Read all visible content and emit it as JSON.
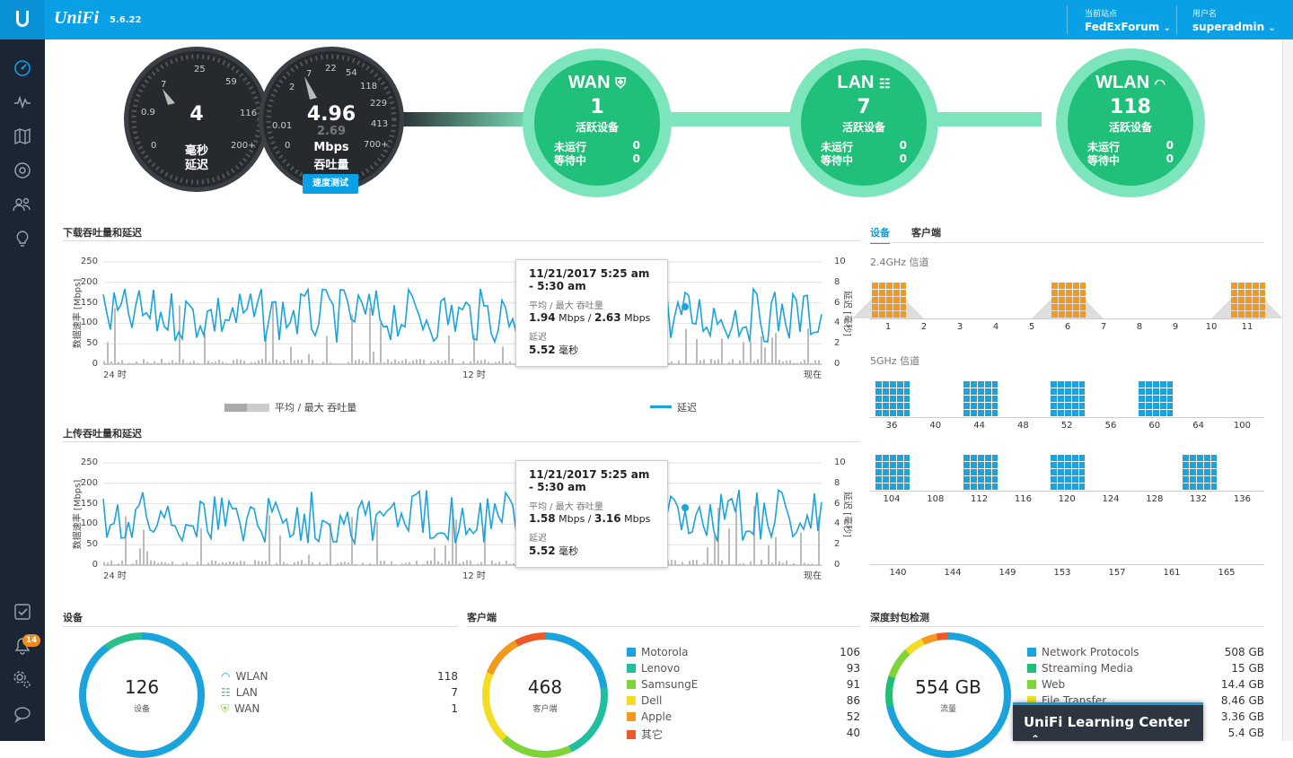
{
  "header": {
    "brand": "UniFi",
    "version": "5.6.22",
    "site_caption": "当前站点",
    "site_value": "FedExForum",
    "user_caption": "用户名",
    "user_value": "superadmin"
  },
  "sidebar": {
    "badge": "14",
    "icons": [
      "dashboard-icon",
      "statistics-icon",
      "map-icon",
      "devices-icon",
      "clients-icon",
      "insights-icon",
      "alerts-icon",
      "events-icon",
      "settings-icon",
      "chat-icon"
    ]
  },
  "gauges": {
    "latency": {
      "value": "4",
      "unit": "毫秒",
      "label": "延迟",
      "ticks": [
        "0",
        "0.9",
        "7",
        "25",
        "59",
        "116",
        "200+"
      ]
    },
    "throughput": {
      "value": "4.96",
      "sub": "2.69",
      "unit": "Mbps",
      "label": "吞吐量",
      "ticks": [
        "0",
        "0.01",
        "2",
        "7",
        "22",
        "54",
        "118",
        "229",
        "413",
        "700+"
      ],
      "button": "速度测试"
    }
  },
  "status": [
    {
      "title": "WAN",
      "count": "1",
      "label": "活跃设备",
      "r1k": "未运行",
      "r1v": "0",
      "r2k": "等待中",
      "r2v": "0"
    },
    {
      "title": "LAN",
      "count": "7",
      "label": "活跃设备",
      "r1k": "未运行",
      "r1v": "0",
      "r2k": "等待中",
      "r2v": "0"
    },
    {
      "title": "WLAN",
      "count": "118",
      "label": "活跃设备",
      "r1k": "未运行",
      "r1v": "0",
      "r2k": "等待中",
      "r2v": "0"
    }
  ],
  "download": {
    "title": "下载吞吐量和延迟",
    "ylabel": "数据速率 [Mbps]",
    "y2label": "延迟 [毫秒]",
    "yticks": [
      "250",
      "200",
      "150",
      "100",
      "50",
      "0"
    ],
    "y2ticks": [
      "10",
      "8",
      "6",
      "4",
      "2",
      "0"
    ],
    "xticks": [
      "24 时",
      "12 时",
      "现在"
    ],
    "tooltip": {
      "time": "11/21/2017 5:25 am - 5:30 am",
      "k1": "平均 / 最大 吞吐量",
      "avg": "1.94",
      "max": "2.63",
      "unit": "Mbps",
      "sep": "/",
      "k2": "延迟",
      "lat": "5.52",
      "lat_unit": "毫秒"
    },
    "legend1": "平均 / 最大 吞吐量",
    "legend2": "延迟"
  },
  "upload": {
    "title": "上传吞吐量和延迟",
    "ylabel": "数据速率 [Mbps]",
    "y2label": "延迟 [毫秒]",
    "yticks": [
      "250",
      "200",
      "150",
      "100",
      "50",
      "0"
    ],
    "y2ticks": [
      "10",
      "8",
      "6",
      "4",
      "2",
      "0"
    ],
    "xticks": [
      "24 时",
      "12 时",
      "现在"
    ],
    "tooltip": {
      "time": "11/21/2017 5:25 am - 5:30 am",
      "k1": "平均 / 最大 吞吐量",
      "avg": "1.58",
      "max": "3.16",
      "unit": "Mbps",
      "sep": "/",
      "k2": "延迟",
      "lat": "5.52",
      "lat_unit": "毫秒"
    }
  },
  "channels": {
    "tab1": "设备",
    "tab2": "客户端",
    "g24": "2.4GHz 信道",
    "g5": "5GHz 信道",
    "row24": [
      "1",
      "2",
      "3",
      "4",
      "5",
      "6",
      "7",
      "8",
      "9",
      "10",
      "11"
    ],
    "row5a": [
      "36",
      "40",
      "44",
      "48",
      "52",
      "56",
      "60",
      "64",
      "100"
    ],
    "row5b": [
      "104",
      "108",
      "112",
      "116",
      "120",
      "124",
      "128",
      "132",
      "136"
    ],
    "row5c": [
      "140",
      "144",
      "149",
      "153",
      "157",
      "161",
      "165"
    ]
  },
  "devices": {
    "title": "设备",
    "total": "126",
    "caption": "设备",
    "rows": [
      {
        "name": "WLAN",
        "value": "118",
        "icon": "wifi-icon"
      },
      {
        "name": "LAN",
        "value": "7",
        "icon": "lan-icon"
      },
      {
        "name": "WAN",
        "value": "1",
        "icon": "shield-icon"
      }
    ]
  },
  "clients": {
    "title": "客户端",
    "total": "468",
    "caption": "客户端",
    "rows": [
      {
        "name": "Motorola",
        "value": "106",
        "color": "#1aa3dc"
      },
      {
        "name": "Lenovo",
        "value": "93",
        "color": "#1fbfa0"
      },
      {
        "name": "SamsungE",
        "value": "91",
        "color": "#7fd43a"
      },
      {
        "name": "Dell",
        "value": "86",
        "color": "#f2dc26"
      },
      {
        "name": "Apple",
        "value": "52",
        "color": "#f39a1e"
      },
      {
        "name": "其它",
        "value": "40",
        "color": "#ec5a2a"
      }
    ]
  },
  "dpi": {
    "title": "深度封包检测",
    "total": "554 GB",
    "caption": "流量",
    "rows": [
      {
        "name": "Network Protocols",
        "value": "508 GB",
        "color": "#1aa3dc"
      },
      {
        "name": "Streaming Media",
        "value": "15 GB",
        "color": "#1fbf78"
      },
      {
        "name": "Web",
        "value": "14.4 GB",
        "color": "#7fd43a"
      },
      {
        "name": "File Transfer",
        "value": "8.46 GB",
        "color": "#f2e61e"
      },
      {
        "name": "",
        "value": "3.36 GB",
        "color": "#f39a1e"
      },
      {
        "name": "",
        "value": "5.4 GB",
        "color": "#ec5a2a"
      }
    ]
  },
  "learning_center": "UniFi Learning Center"
}
